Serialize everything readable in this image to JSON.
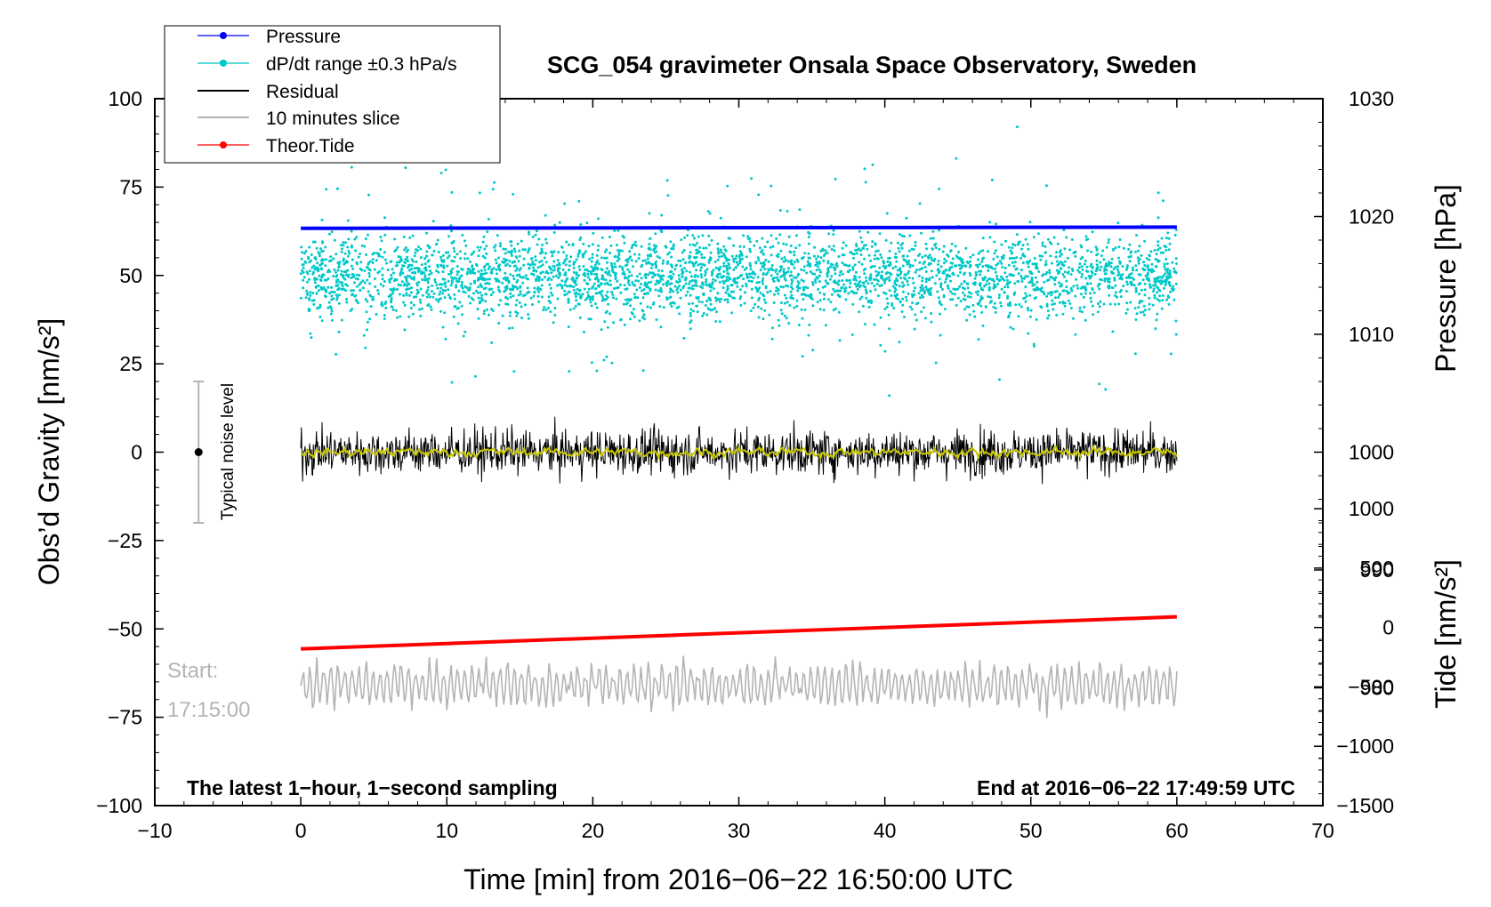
{
  "chart_data": {
    "type": "line",
    "title": "SCG_054 gravimeter Onsala Space Observatory, Sweden",
    "xlabel": "Time [min] from 2016−06−22 16:50:00 UTC",
    "ylabel_left": "Obs’d Gravity [nm/s²]",
    "ylabel_right_pressure": "Pressure [hPa]",
    "ylabel_right_tide": "Tide [nm/s²]",
    "xlim": [
      -10,
      70
    ],
    "ylim_left": [
      -100,
      100
    ],
    "pressure_axis_range": [
      970,
      1030
    ],
    "tide_axis_range": [
      -1500,
      1000
    ],
    "x_ticks": [
      "−10",
      "0",
      "10",
      "20",
      "30",
      "40",
      "50",
      "60",
      "70"
    ],
    "y_left_ticks": [
      "100",
      "75",
      "50",
      "25",
      "0",
      "−25",
      "−50",
      "−75",
      "−100"
    ],
    "pressure_ticks": [
      "1030",
      "1020",
      "1010",
      "1000",
      "990",
      "980"
    ],
    "tide_ticks": [
      "1000",
      "500",
      "0",
      "−500",
      "−1000",
      "−1500"
    ],
    "legend_position": "top-left",
    "legend": [
      {
        "label": "Pressure",
        "color": "#0000ff",
        "marker": "dot"
      },
      {
        "label": "dP/dt range ±0.3 hPa/s",
        "color": "#00c8c8",
        "marker": "dot"
      },
      {
        "label": "Residual",
        "color": "#000000",
        "marker": "line"
      },
      {
        "label": "10 minutes slice",
        "color": "#b4b4b4",
        "marker": "line"
      },
      {
        "label": "Theor.Tide",
        "color": "#ff0000",
        "marker": "dot"
      }
    ],
    "series": [
      {
        "name": "Pressure",
        "axis": "pressure",
        "x_range": [
          0,
          60
        ],
        "start": 1019.0,
        "end": 1019.1
      },
      {
        "name": "dP/dt range ±0.3 hPa/s",
        "axis": "left",
        "x_range": [
          0,
          60
        ],
        "center": 50,
        "typical_spread": 8,
        "min": 16,
        "max": 92
      },
      {
        "name": "Residual",
        "axis": "left",
        "x_range": [
          0,
          60
        ],
        "center": 0,
        "typical_spread": 5,
        "min": -11,
        "max": 10
      },
      {
        "name": "Residual smoothed",
        "axis": "left",
        "x_range": [
          0,
          60
        ],
        "center": 0,
        "typical_spread": 1.5,
        "color": "#c8c800"
      },
      {
        "name": "10 minutes slice",
        "axis": "left",
        "x_range": [
          0,
          60
        ],
        "center": -66,
        "typical_spread": 6
      },
      {
        "name": "Theor.Tide",
        "axis": "tide",
        "x_range": [
          0,
          60
        ],
        "start": -180,
        "end": 90
      }
    ],
    "noise_level": {
      "label": "Typical noise level",
      "x": -7,
      "center": 0,
      "low": -20,
      "high": 20
    },
    "start_label": [
      "Start:",
      "17:15:00"
    ],
    "bottom_left_note": "The latest 1−hour, 1−second sampling",
    "bottom_right_note": "End at 2016−06−22 17:49:59 UTC"
  }
}
